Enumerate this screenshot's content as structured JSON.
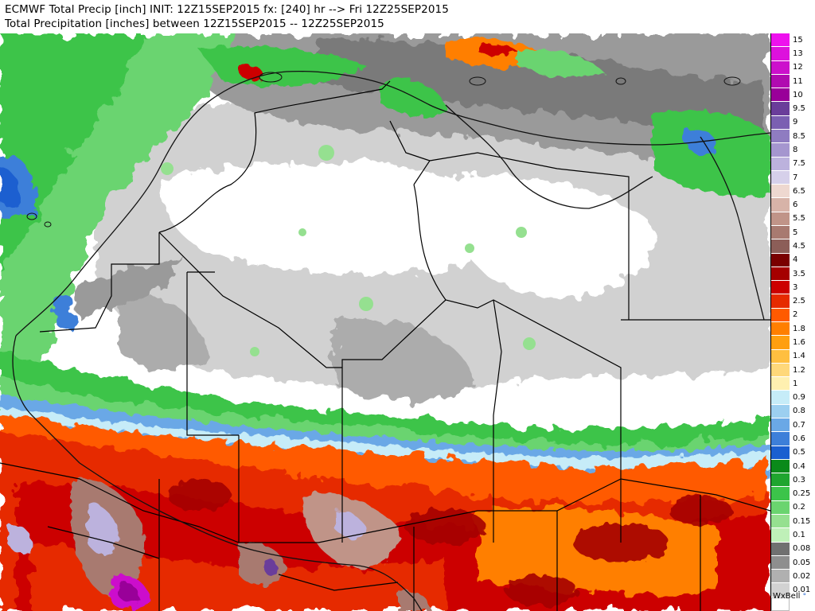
{
  "header": {
    "line1": "ECMWF Total Precip [inch] INIT: 12Z15SEP2015 fx: [240] hr --> Fri 12Z25SEP2015",
    "line2": "Total Precipitation [inches] between 12Z15SEP2015 -- 12Z25SEP2015"
  },
  "scale": {
    "levels": [
      {
        "label": "15",
        "color": "#ee11ee"
      },
      {
        "label": "13",
        "color": "#dd11dd"
      },
      {
        "label": "12",
        "color": "#cc10cc"
      },
      {
        "label": "11",
        "color": "#b00bb0"
      },
      {
        "label": "10",
        "color": "#990099"
      },
      {
        "label": "9.5",
        "color": "#6a3d9a"
      },
      {
        "label": "9",
        "color": "#7b5fb2"
      },
      {
        "label": "8.5",
        "color": "#8f7cc1"
      },
      {
        "label": "8",
        "color": "#a596cf"
      },
      {
        "label": "7.5",
        "color": "#bcb2dd"
      },
      {
        "label": "7",
        "color": "#d6d0ea"
      },
      {
        "label": "6.5",
        "color": "#eed8d0"
      },
      {
        "label": "6",
        "color": "#d7b3a8"
      },
      {
        "label": "5.5",
        "color": "#c09488"
      },
      {
        "label": "5",
        "color": "#a87a70"
      },
      {
        "label": "4.5",
        "color": "#8c5e58"
      },
      {
        "label": "4",
        "color": "#7a0000"
      },
      {
        "label": "3.5",
        "color": "#a50000"
      },
      {
        "label": "3",
        "color": "#cc0000"
      },
      {
        "label": "2.5",
        "color": "#e62a00"
      },
      {
        "label": "2",
        "color": "#ff5a00"
      },
      {
        "label": "1.8",
        "color": "#ff7f00"
      },
      {
        "label": "1.6",
        "color": "#ff9f10"
      },
      {
        "label": "1.4",
        "color": "#ffbf40"
      },
      {
        "label": "1.2",
        "color": "#ffd87a"
      },
      {
        "label": "1",
        "color": "#fff0b0"
      },
      {
        "label": "0.9",
        "color": "#c6ecf8"
      },
      {
        "label": "0.8",
        "color": "#9ccff0"
      },
      {
        "label": "0.7",
        "color": "#6aa8e6"
      },
      {
        "label": "0.6",
        "color": "#3d7fd9"
      },
      {
        "label": "0.5",
        "color": "#1a5fd0"
      },
      {
        "label": "0.4",
        "color": "#0a8a1a"
      },
      {
        "label": "0.3",
        "color": "#1fa52f"
      },
      {
        "label": "0.25",
        "color": "#3cc44a"
      },
      {
        "label": "0.2",
        "color": "#6ad46f"
      },
      {
        "label": "0.15",
        "color": "#95e090"
      },
      {
        "label": "0.1",
        "color": "#bff0b8"
      },
      {
        "label": "0.08",
        "color": "#707070"
      },
      {
        "label": "0.05",
        "color": "#8e8e8e"
      },
      {
        "label": "0.02",
        "color": "#b0b0b0"
      },
      {
        "label": "0.01",
        "color": "#d2d2d2"
      },
      {
        "label": "",
        "color": "#ffffff"
      }
    ]
  },
  "brand": "WxBell"
}
